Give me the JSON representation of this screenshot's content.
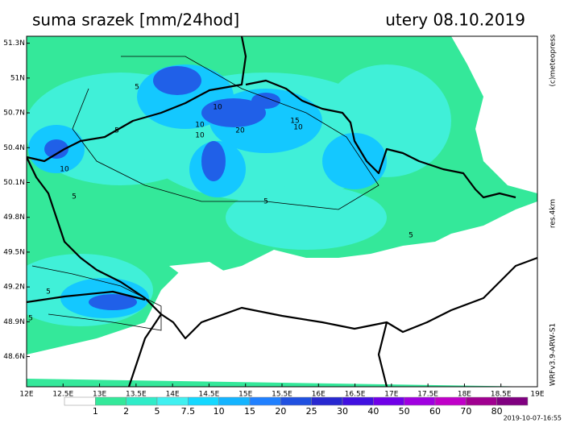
{
  "title": "suma srazek [mm/24hod]",
  "date": "utery 08.10.2019",
  "xlim": [
    12,
    19
  ],
  "ylim": [
    48.34,
    51.36
  ],
  "xticks": [
    {
      "value": 12,
      "label": "12E"
    },
    {
      "value": 12.5,
      "label": "12.5E"
    },
    {
      "value": 13,
      "label": "13E"
    },
    {
      "value": 13.5,
      "label": "13.5E"
    },
    {
      "value": 14,
      "label": "14E"
    },
    {
      "value": 14.5,
      "label": "14.5E"
    },
    {
      "value": 15,
      "label": "15E"
    },
    {
      "value": 15.5,
      "label": "15.5E"
    },
    {
      "value": 16,
      "label": "16E"
    },
    {
      "value": 16.5,
      "label": "16.5E"
    },
    {
      "value": 17,
      "label": "17E"
    },
    {
      "value": 17.5,
      "label": "17.5E"
    },
    {
      "value": 18,
      "label": "18E"
    },
    {
      "value": 18.5,
      "label": "18.5E"
    },
    {
      "value": 19,
      "label": "19E"
    }
  ],
  "yticks": [
    {
      "value": 48.6,
      "label": "48.6N"
    },
    {
      "value": 48.9,
      "label": "48.9N"
    },
    {
      "value": 49.2,
      "label": "49.2N"
    },
    {
      "value": 49.5,
      "label": "49.5N"
    },
    {
      "value": 49.8,
      "label": "49.8N"
    },
    {
      "value": 50.1,
      "label": "50.1N"
    },
    {
      "value": 50.4,
      "label": "50.4N"
    },
    {
      "value": 50.7,
      "label": "50.7N"
    },
    {
      "value": 51,
      "label": "51N"
    },
    {
      "value": 51.3,
      "label": "51.3N"
    }
  ],
  "legend": {
    "labels": [
      1,
      2,
      5,
      7.5,
      10,
      15,
      20,
      25,
      30,
      40,
      50,
      60,
      70,
      80
    ],
    "colors": [
      "#ffffff",
      "#34e89a",
      "#30ecc8",
      "#40f0f0",
      "#14d8ff",
      "#14b4ff",
      "#2080ff",
      "#2050e0",
      "#2828d0",
      "#4010e0",
      "#7000e8",
      "#a000e0",
      "#c000c8",
      "#a00090",
      "#800080"
    ]
  },
  "contour_labels": [
    5,
    5,
    10,
    10,
    10,
    20,
    15,
    10,
    5,
    5,
    10,
    5,
    5,
    5
  ],
  "side": {
    "copyright": "(c)meteopress",
    "resolution": "res.4km",
    "model": "WRFv3.9-ARW-S1"
  },
  "timestamp": "2019-10-07-16:55"
}
